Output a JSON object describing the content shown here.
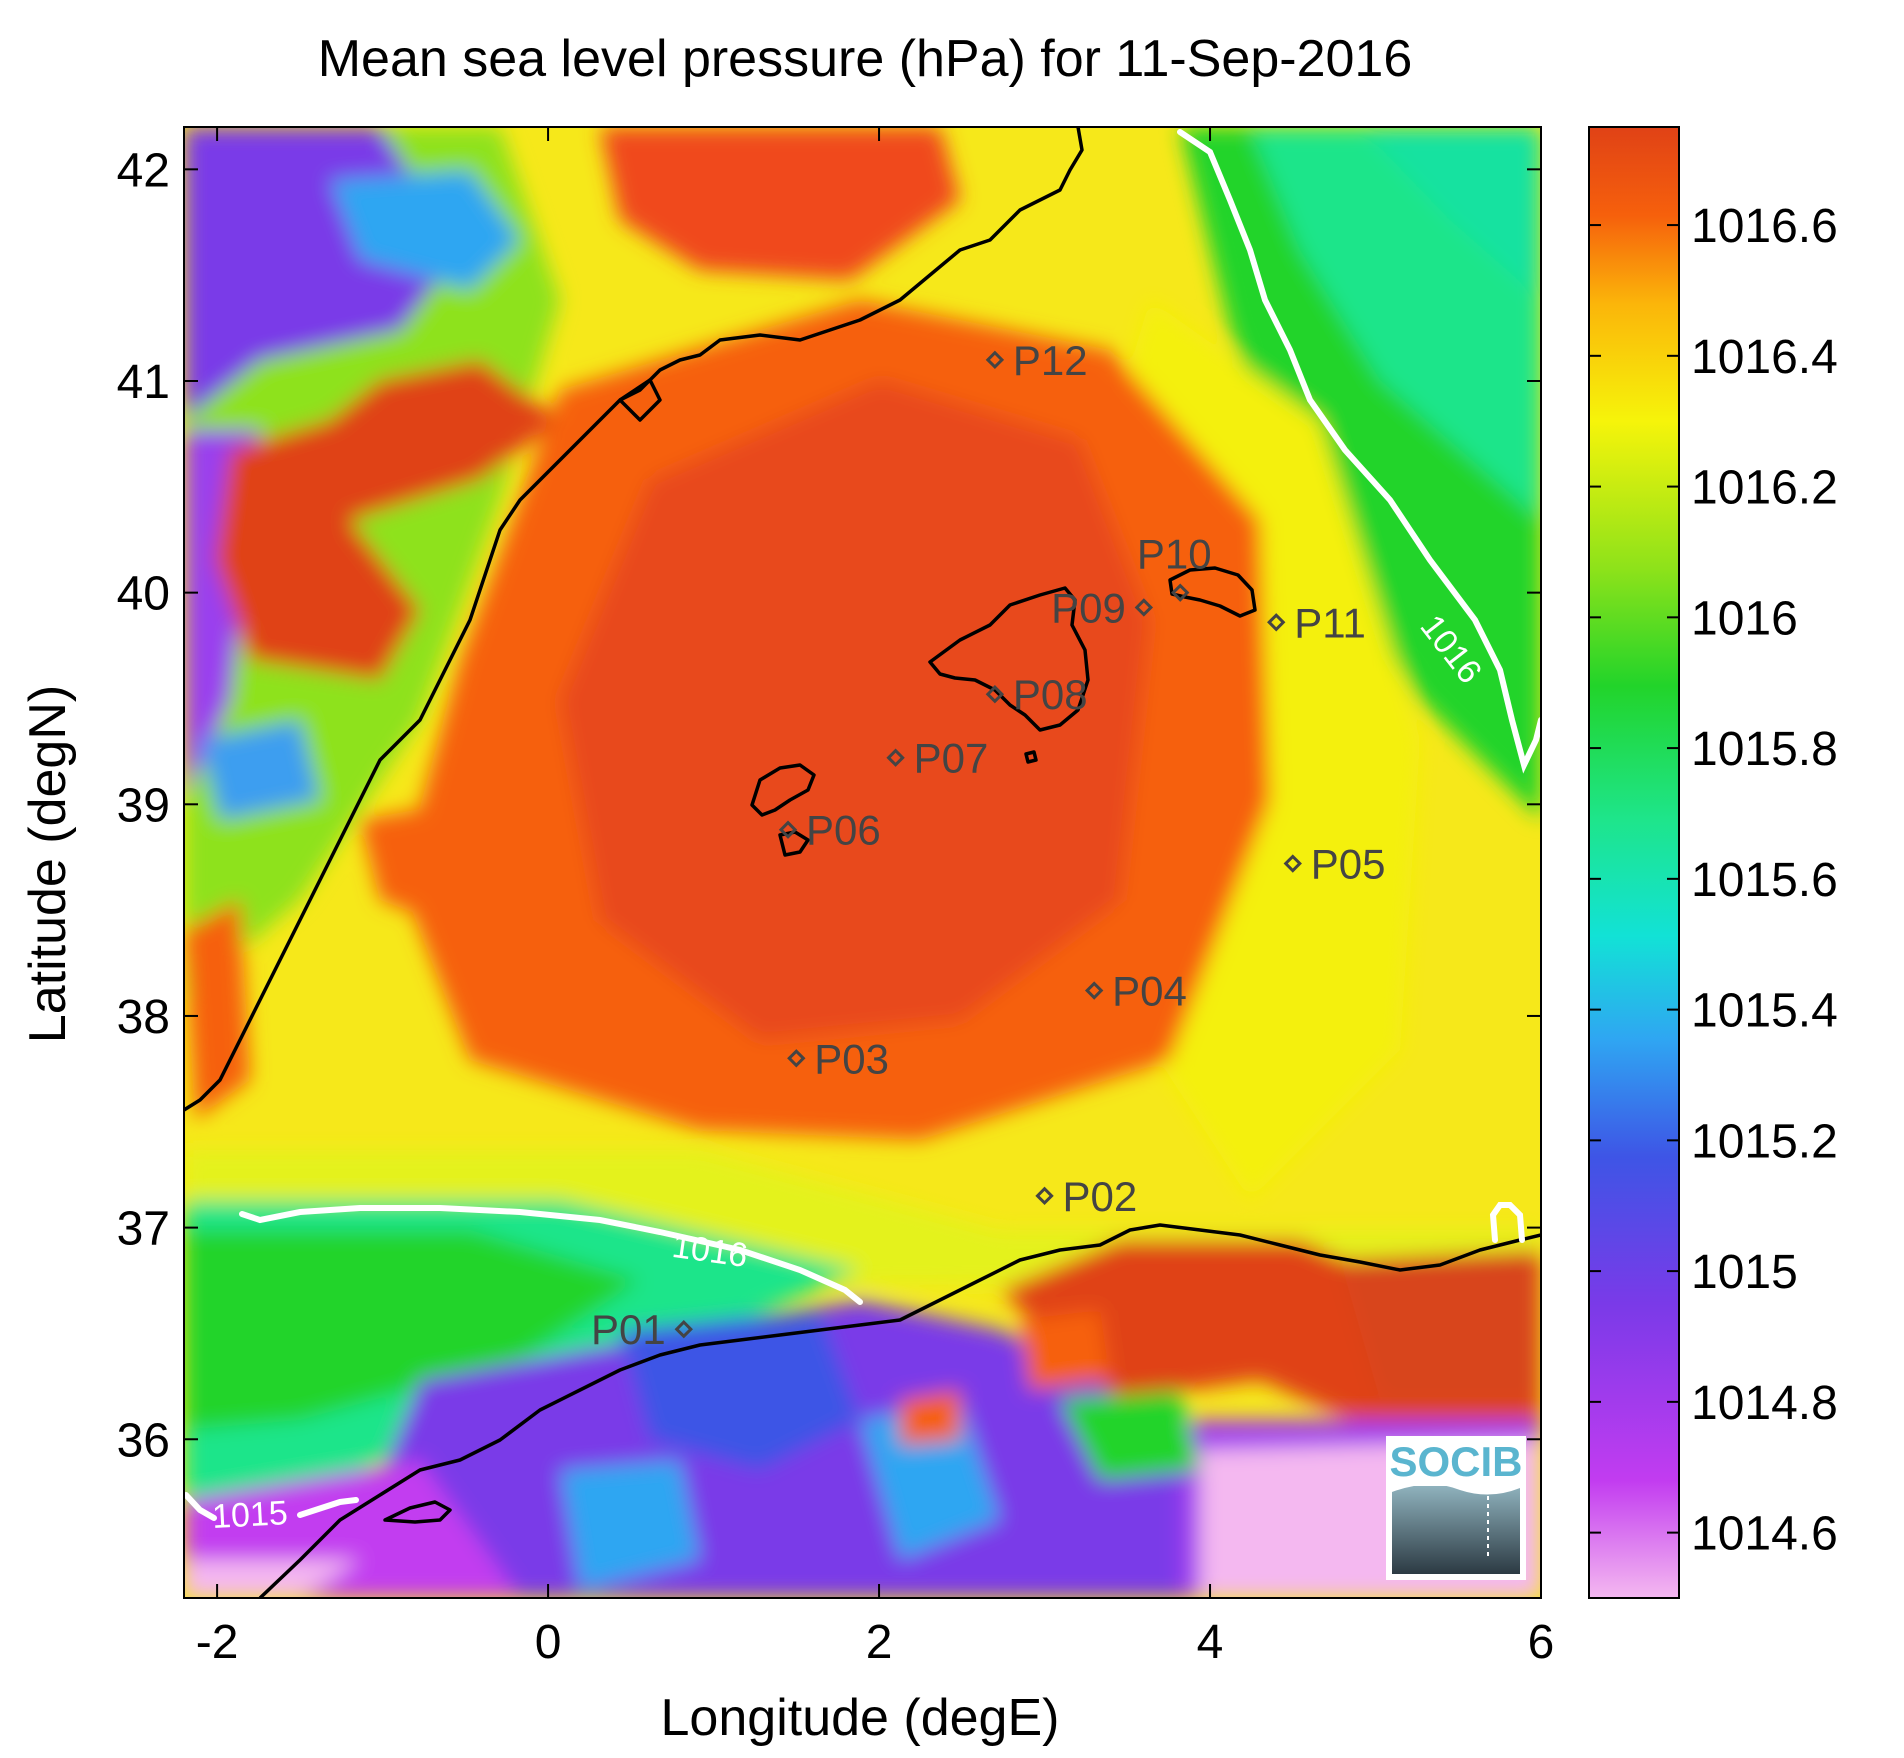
{
  "chart_data": {
    "type": "heatmap",
    "title": "Mean sea level pressure (hPa) for 11-Sep-2016",
    "xlabel": "Longitude (degE)",
    "ylabel": "Latitude (degN)",
    "xlim": [
      -2.2,
      6.0
    ],
    "ylim": [
      35.25,
      42.2
    ],
    "x_ticks": [
      -2,
      0,
      2,
      4,
      6
    ],
    "y_ticks": [
      36,
      37,
      38,
      39,
      40,
      41,
      42
    ],
    "x_tick_labels": [
      "-2",
      "0",
      "2",
      "4",
      "6"
    ],
    "y_tick_labels": [
      "36",
      "37",
      "38",
      "39",
      "40",
      "41",
      "42"
    ],
    "colorbar": {
      "range": [
        1014.5,
        1016.75
      ],
      "ticks": [
        1014.6,
        1014.8,
        1015,
        1015.2,
        1015.4,
        1015.6,
        1015.8,
        1016,
        1016.2,
        1016.4,
        1016.6
      ],
      "tick_labels": [
        "1014.6",
        "1014.8",
        "1015",
        "1015.2",
        "1015.4",
        "1015.6",
        "1015.8",
        "1016",
        "1016.2",
        "1016.4",
        "1016.6"
      ],
      "colormap": [
        "#f4b8f0",
        "#c23cf0",
        "#7a3ae8",
        "#3e55e6",
        "#2fa6f2",
        "#12e2d6",
        "#1ee58a",
        "#22d42a",
        "#8ee21a",
        "#f6f40a",
        "#fbb50a",
        "#f6600c",
        "#e04216"
      ]
    },
    "points": [
      {
        "label": "P01",
        "lon": 0.82,
        "lat": 36.52
      },
      {
        "label": "P02",
        "lon": 3.0,
        "lat": 37.15
      },
      {
        "label": "P03",
        "lon": 1.5,
        "lat": 37.8
      },
      {
        "label": "P04",
        "lon": 3.3,
        "lat": 38.12
      },
      {
        "label": "P05",
        "lon": 4.5,
        "lat": 38.72
      },
      {
        "label": "P06",
        "lon": 1.45,
        "lat": 38.88
      },
      {
        "label": "P07",
        "lon": 2.1,
        "lat": 39.22
      },
      {
        "label": "P08",
        "lon": 2.7,
        "lat": 39.52
      },
      {
        "label": "P09",
        "lon": 3.6,
        "lat": 39.93
      },
      {
        "label": "P10",
        "lon": 3.82,
        "lat": 40.0
      },
      {
        "label": "P11",
        "lon": 4.4,
        "lat": 39.86
      },
      {
        "label": "P12",
        "lon": 2.7,
        "lat": 41.1
      }
    ],
    "contours": [
      {
        "label": "1016",
        "lon": 1.0,
        "lat": 36.82
      },
      {
        "label": "1016",
        "lon": 5.45,
        "lat": 39.6
      },
      {
        "label": "1015",
        "lon": -1.6,
        "lat": 35.62
      }
    ],
    "grid": false,
    "colors": {
      "axis": "#000000",
      "coastline": "#000000",
      "contour": "#ffffff",
      "marker": "#444444"
    }
  },
  "logo": {
    "text": "SOCIB"
  }
}
